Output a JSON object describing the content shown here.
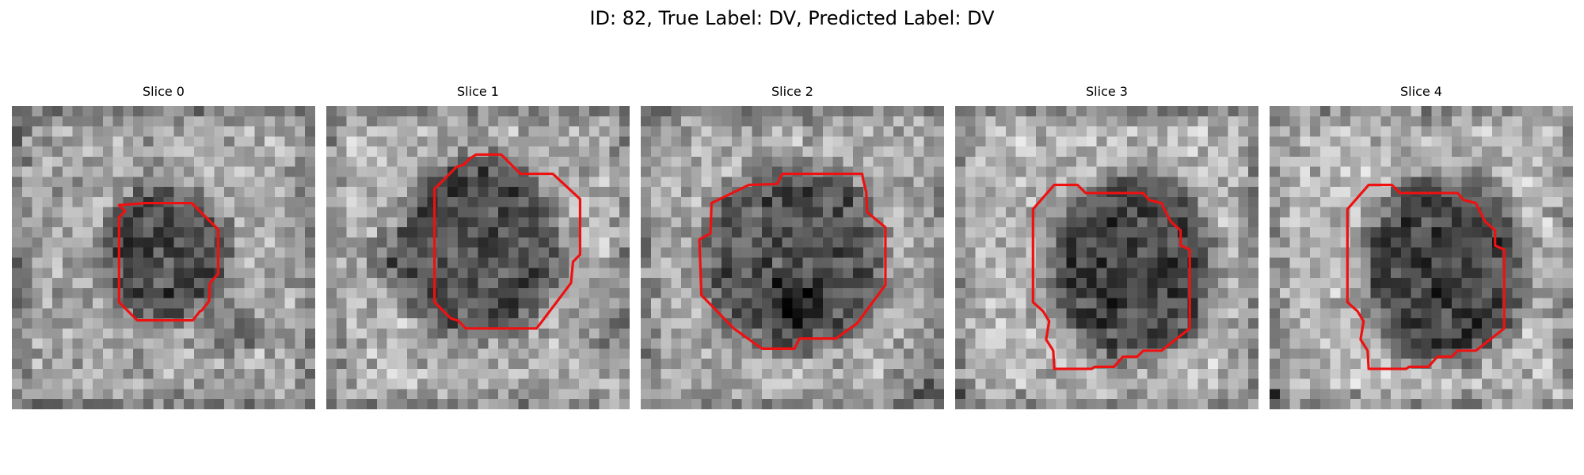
{
  "figure": {
    "title": "ID: 82, True Label: DV, Predicted Label: DV"
  },
  "panels": [
    {
      "title": "Slice 0",
      "contour_color": "#ee1111"
    },
    {
      "title": "Slice 1",
      "contour_color": "#ee1111"
    },
    {
      "title": "Slice 2",
      "contour_color": "#ee1111"
    },
    {
      "title": "Slice 3",
      "contour_color": "#ee1111"
    },
    {
      "title": "Slice 4",
      "contour_color": "#ee1111"
    }
  ],
  "colors": {
    "background": "#ffffff",
    "contour": "#ee1111"
  }
}
